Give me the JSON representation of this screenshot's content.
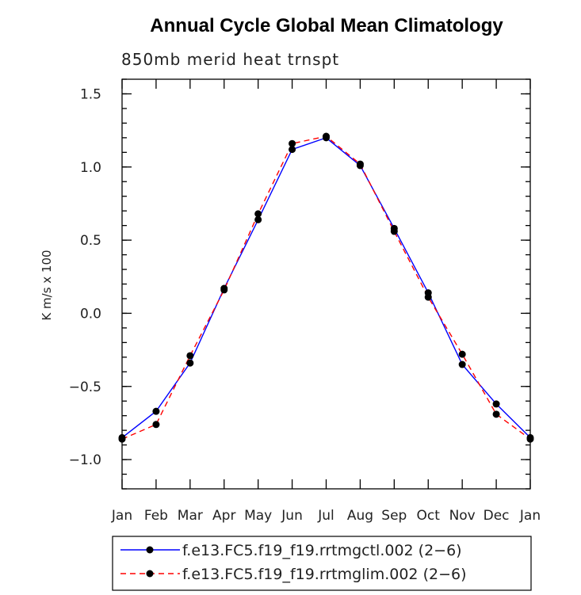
{
  "chart_data": {
    "type": "line",
    "title": "Annual Cycle Global Mean Climatology",
    "subtitle": "850mb merid heat trnspt",
    "ylabel": "K m/s x 100",
    "xlabel": "",
    "categories": [
      "Jan",
      "Feb",
      "Mar",
      "Apr",
      "May",
      "Jun",
      "Jul",
      "Aug",
      "Sep",
      "Oct",
      "Nov",
      "Dec",
      "Jan"
    ],
    "ylim": [
      -1.2,
      1.6
    ],
    "yticks": [
      1.5,
      1.0,
      0.5,
      0.0,
      -0.5,
      -1.0
    ],
    "ytick_labels": [
      "1.5",
      "1.0",
      "0.5",
      "0.0",
      "−0.5",
      "−1.0"
    ],
    "series": [
      {
        "name": "f.e13.FC5.f19_f19.rrtmgctl.002 (2−6)",
        "color": "#0000ff",
        "style": "solid",
        "values": [
          -0.85,
          -0.67,
          -0.34,
          0.17,
          0.64,
          1.12,
          1.2,
          1.01,
          0.58,
          0.14,
          -0.35,
          -0.62,
          -0.85
        ]
      },
      {
        "name": "f.e13.FC5.f19_f19.rrtmglim.002 (2−6)",
        "color": "#ff0000",
        "style": "dashed",
        "values": [
          -0.86,
          -0.76,
          -0.29,
          0.16,
          0.68,
          1.16,
          1.21,
          1.02,
          0.56,
          0.11,
          -0.28,
          -0.69,
          -0.86
        ]
      }
    ],
    "grid": false,
    "legend": "bottom"
  }
}
